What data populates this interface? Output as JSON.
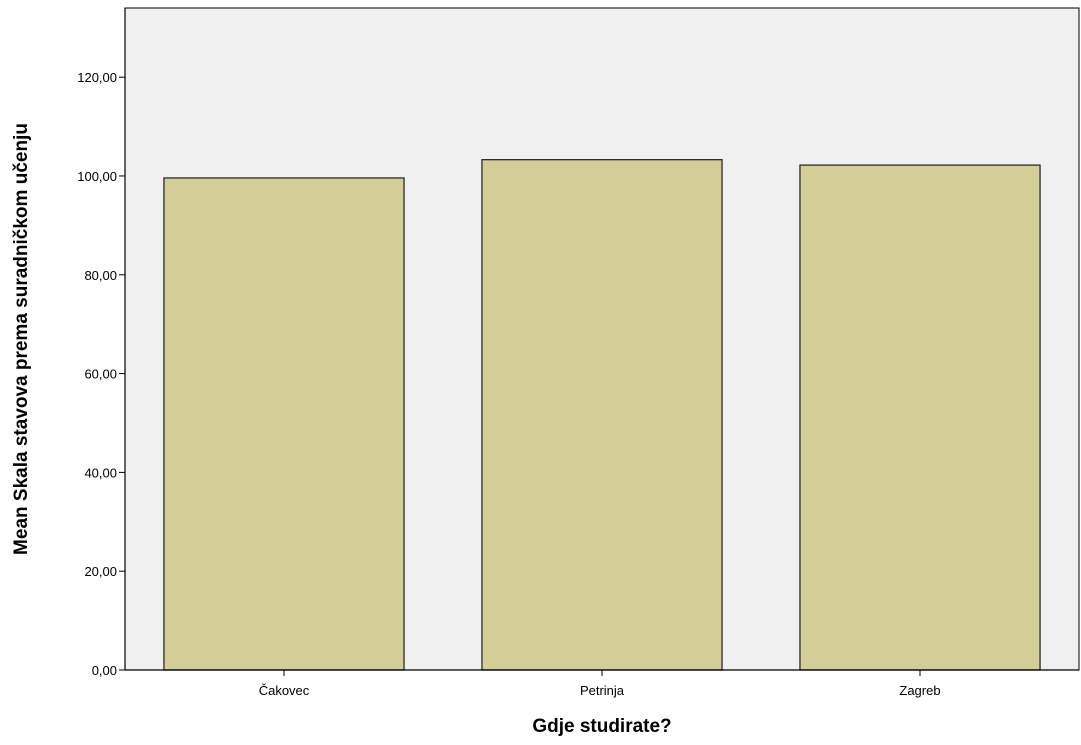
{
  "chart_data": {
    "type": "bar",
    "title": "",
    "xlabel": "Gdje studirate?",
    "ylabel": "Mean Skala stavova prema suradničkom učenju",
    "categories": [
      "Čakovec",
      "Petrinja",
      "Zagreb"
    ],
    "values": [
      99.6,
      103.3,
      102.2
    ],
    "ylim": [
      0,
      134
    ],
    "yticks": [
      0,
      20,
      40,
      60,
      80,
      100,
      120
    ],
    "ytick_labels": [
      "0,00",
      "20,00",
      "40,00",
      "60,00",
      "80,00",
      "100,00",
      "120,00"
    ],
    "grid": false,
    "colors": {
      "bar_fill": "#d3ce97",
      "bar_stroke": "#2b2b2b",
      "plot_background": "#f0f0f0",
      "axis": "#000000"
    }
  }
}
